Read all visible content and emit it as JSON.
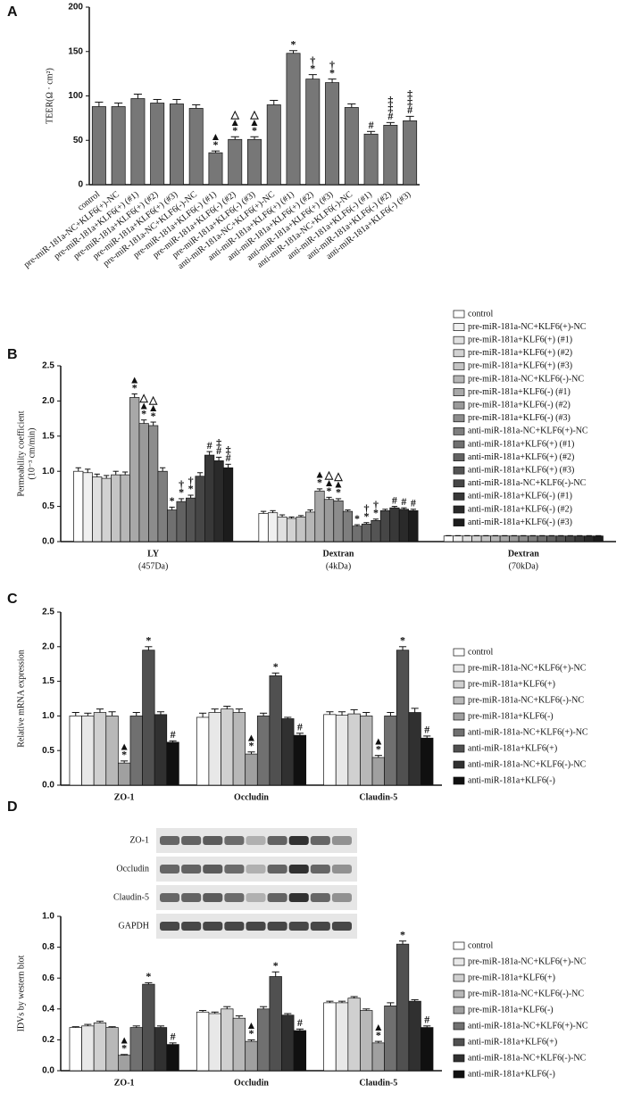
{
  "chart_data": [
    {
      "type": "bar",
      "panel": "A",
      "ylabel": "TEER(Ω · cm²)",
      "categories": [
        "control",
        "pre-miR-181a-NC+KLF6(+)-NC",
        "pre-miR-181a+KLF6(+) (#1)",
        "pre-miR-181a+KLF6(+) (#2)",
        "pre-miR-181a+KLF6(+) (#3)",
        "pre-miR-181a-NC+KLF6(-)-NC",
        "pre-miR-181a+KLF6(-) (#1)",
        "pre-miR-181a+KLF6(-) (#2)",
        "pre-miR-181a+KLF6(-) (#3)",
        "anti-miR-181a-NC+KLF6(+)-NC",
        "anti-miR-181a+KLF6(+) (#1)",
        "anti-miR-181a+KLF6(+) (#2)",
        "anti-miR-181a+KLF6(+) (#3)",
        "anti-miR-181a-NC+KLF6(-)-NC",
        "anti-miR-181a+KLF6(-) (#1)",
        "anti-miR-181a+KLF6(-) (#2)",
        "anti-miR-181a+KLF6(-) (#3)"
      ],
      "values": [
        88,
        88,
        97,
        92,
        91,
        86,
        36,
        51,
        51,
        90,
        148,
        119,
        115,
        87,
        57,
        67,
        72
      ],
      "errors": [
        5,
        4,
        5,
        4,
        5,
        4,
        2,
        3,
        3,
        5,
        3,
        5,
        4,
        4,
        3,
        3,
        5
      ],
      "markers": [
        null,
        null,
        null,
        null,
        null,
        null,
        [
          "▲",
          "*"
        ],
        [
          "△",
          "▲",
          "*"
        ],
        [
          "△",
          "▲",
          "*"
        ],
        null,
        [
          "*"
        ],
        [
          "†",
          "*"
        ],
        [
          "†",
          "*"
        ],
        null,
        [
          "#"
        ],
        [
          "‡",
          "‡",
          "#"
        ],
        [
          "‡",
          "‡",
          "#"
        ]
      ],
      "color": "#777777",
      "ylim": [
        0,
        200
      ],
      "yticks": [
        0,
        50,
        100,
        150,
        200
      ]
    },
    {
      "type": "grouped-bar",
      "panel": "B",
      "ylabel": "Permeability coefficient",
      "ylabel_sub": "(10⁻³ cm/min)",
      "categories": [
        "LY",
        "Dextran",
        "Dextran"
      ],
      "category_sublabels": [
        "(457Da)",
        "(4kDa)",
        "(70kDa)"
      ],
      "ylim": [
        0,
        2.5
      ],
      "yticks": [
        {
          "value": 0,
          "label": "0.0"
        },
        0.5,
        {
          "value": 1,
          "label": "1.0"
        },
        1.5,
        {
          "value": 2,
          "label": "2.0"
        },
        2.5
      ],
      "series": [
        {
          "name": "control",
          "color": "#ffffff",
          "values": [
            1.0,
            0.4,
            0.08
          ],
          "errors": [
            0.05,
            0.03,
            0.005
          ]
        },
        {
          "name": "pre-miR-181a-NC+KLF6(+)-NC",
          "color": "#f0f0f0",
          "values": [
            0.98,
            0.41,
            0.08
          ],
          "errors": [
            0.05,
            0.03,
            0.005
          ]
        },
        {
          "name": "pre-miR-181a+KLF6(+) (#1)",
          "color": "#e0e0e0",
          "values": [
            0.92,
            0.35,
            0.08
          ],
          "errors": [
            0.04,
            0.03,
            0.005
          ]
        },
        {
          "name": "pre-miR-181a+KLF6(+) (#2)",
          "color": "#d2d2d2",
          "values": [
            0.9,
            0.33,
            0.08
          ],
          "errors": [
            0.04,
            0.02,
            0.005
          ]
        },
        {
          "name": "pre-miR-181a+KLF6(+) (#3)",
          "color": "#c4c4c4",
          "values": [
            0.95,
            0.35,
            0.08
          ],
          "errors": [
            0.05,
            0.02,
            0.005
          ]
        },
        {
          "name": "pre-miR-181a-NC+KLF6(-)-NC",
          "color": "#b6b6b6",
          "values": [
            0.95,
            0.42,
            0.08
          ],
          "errors": [
            0.04,
            0.03,
            0.005
          ]
        },
        {
          "name": "pre-miR-181a+KLF6(-) (#1)",
          "color": "#a8a8a8",
          "values": [
            2.05,
            0.72,
            0.08
          ],
          "errors": [
            0.05,
            0.03,
            0.005
          ],
          "markers": [
            [
              "▲",
              "*"
            ],
            [
              "▲",
              "*"
            ],
            null
          ]
        },
        {
          "name": "pre-miR-181a+KLF6(-) (#2)",
          "color": "#9a9a9a",
          "values": [
            1.68,
            0.6,
            0.08
          ],
          "errors": [
            0.05,
            0.03,
            0.005
          ],
          "markers": [
            [
              "△",
              "▲",
              "*"
            ],
            [
              "△",
              "▲",
              "*"
            ],
            null
          ]
        },
        {
          "name": "pre-miR-181a+KLF6(-) (#3)",
          "color": "#8c8c8c",
          "values": [
            1.65,
            0.58,
            0.08
          ],
          "errors": [
            0.05,
            0.03,
            0.005
          ],
          "markers": [
            [
              "△",
              "▲",
              "*"
            ],
            [
              "△",
              "▲",
              "*"
            ],
            null
          ]
        },
        {
          "name": "anti-miR-181a-NC+KLF6(+)-NC",
          "color": "#7e7e7e",
          "values": [
            1.0,
            0.43,
            0.08
          ],
          "errors": [
            0.05,
            0.02,
            0.005
          ]
        },
        {
          "name": "anti-miR-181a+KLF6(+) (#1)",
          "color": "#707070",
          "values": [
            0.45,
            0.22,
            0.08
          ],
          "errors": [
            0.04,
            0.02,
            0.005
          ],
          "markers": [
            [
              "*"
            ],
            [
              "*"
            ],
            null
          ]
        },
        {
          "name": "anti-miR-181a+KLF6(+) (#2)",
          "color": "#626262",
          "values": [
            0.57,
            0.25,
            0.08
          ],
          "errors": [
            0.04,
            0.02,
            0.005
          ],
          "markers": [
            [
              "†",
              "*"
            ],
            [
              "†",
              "*"
            ],
            null
          ]
        },
        {
          "name": "anti-miR-181a+KLF6(+) (#3)",
          "color": "#545454",
          "values": [
            0.62,
            0.3,
            0.08
          ],
          "errors": [
            0.04,
            0.02,
            0.005
          ],
          "markers": [
            [
              "†",
              "*"
            ],
            [
              "†",
              "*"
            ],
            null
          ]
        },
        {
          "name": "anti-miR-181a-NC+KLF6(-)-NC",
          "color": "#464646",
          "values": [
            0.93,
            0.44,
            0.08
          ],
          "errors": [
            0.05,
            0.02,
            0.005
          ]
        },
        {
          "name": "anti-miR-181a+KLF6(-) (#1)",
          "color": "#383838",
          "values": [
            1.23,
            0.48,
            0.08
          ],
          "errors": [
            0.05,
            0.02,
            0.005
          ],
          "markers": [
            [
              "#"
            ],
            [
              "#"
            ],
            null
          ]
        },
        {
          "name": "anti-miR-181a+KLF6(-) (#2)",
          "color": "#2a2a2a",
          "values": [
            1.15,
            0.46,
            0.08
          ],
          "errors": [
            0.05,
            0.02,
            0.005
          ],
          "markers": [
            [
              "‡",
              "#"
            ],
            [
              "#"
            ],
            null
          ]
        },
        {
          "name": "anti-miR-181a+KLF6(-) (#3)",
          "color": "#1c1c1c",
          "values": [
            1.05,
            0.44,
            0.08
          ],
          "errors": [
            0.05,
            0.02,
            0.005
          ],
          "markers": [
            [
              "‡",
              "#"
            ],
            [
              "#"
            ],
            null
          ]
        }
      ]
    },
    {
      "type": "grouped-bar",
      "panel": "C",
      "ylabel": "Relative mRNA expression",
      "categories": [
        "ZO-1",
        "Occludin",
        "Claudin-5"
      ],
      "ylim": [
        0,
        2.5
      ],
      "yticks": [
        {
          "value": 0,
          "label": "0.0"
        },
        0.5,
        {
          "value": 1,
          "label": "1.0"
        },
        1.5,
        {
          "value": 2,
          "label": "2.0"
        },
        2.5
      ],
      "series": [
        {
          "name": "control",
          "color": "#ffffff",
          "values": [
            1.0,
            0.98,
            1.02
          ],
          "errors": [
            0.05,
            0.06,
            0.04
          ]
        },
        {
          "name": "pre-miR-181a-NC+KLF6(+)-NC",
          "color": "#e8e8e8",
          "values": [
            1.0,
            1.05,
            1.01
          ],
          "errors": [
            0.04,
            0.05,
            0.05
          ]
        },
        {
          "name": "pre-miR-181a+KLF6(+)",
          "color": "#d0d0d0",
          "values": [
            1.05,
            1.1,
            1.03
          ],
          "errors": [
            0.05,
            0.04,
            0.06
          ]
        },
        {
          "name": "pre-miR-181a-NC+KLF6(-)-NC",
          "color": "#b8b8b8",
          "values": [
            1.0,
            1.05,
            1.0
          ],
          "errors": [
            0.06,
            0.05,
            0.05
          ]
        },
        {
          "name": "pre-miR-181a+KLF6(-)",
          "color": "#a0a0a0",
          "values": [
            0.32,
            0.45,
            0.4
          ],
          "errors": [
            0.03,
            0.03,
            0.03
          ],
          "markers": [
            [
              "▲",
              "*"
            ],
            [
              "▲",
              "*"
            ],
            [
              "▲",
              "*"
            ]
          ]
        },
        {
          "name": "anti-miR-181a-NC+KLF6(+)-NC",
          "color": "#707070",
          "values": [
            1.0,
            1.0,
            1.0
          ],
          "errors": [
            0.05,
            0.04,
            0.05
          ]
        },
        {
          "name": "anti-miR-181a+KLF6(+)",
          "color": "#505050",
          "values": [
            1.95,
            1.58,
            1.95
          ],
          "errors": [
            0.05,
            0.04,
            0.05
          ],
          "markers": [
            [
              "*"
            ],
            [
              "*"
            ],
            [
              "*"
            ]
          ]
        },
        {
          "name": "anti-miR-181a-NC+KLF6(-)-NC",
          "color": "#303030",
          "values": [
            1.02,
            0.96,
            1.05
          ],
          "errors": [
            0.04,
            0.02,
            0.06
          ]
        },
        {
          "name": "anti-miR-181a+KLF6(-)",
          "color": "#101010",
          "values": [
            0.62,
            0.72,
            0.68
          ],
          "errors": [
            0.02,
            0.03,
            0.03
          ],
          "markers": [
            [
              "#"
            ],
            [
              "#"
            ],
            [
              "#"
            ]
          ]
        }
      ]
    },
    {
      "type": "grouped-bar",
      "panel": "D",
      "ylabel": "IDVs by western blot",
      "blot_labels": [
        "ZO-1",
        "Occludin",
        "Claudin-5",
        "GAPDH"
      ],
      "categories": [
        "ZO-1",
        "Occludin",
        "Claudin-5"
      ],
      "ylim": [
        0,
        1.0
      ],
      "yticks": [
        {
          "value": 0,
          "label": "0.0"
        },
        0.2,
        0.4,
        0.6,
        0.8,
        {
          "value": 1,
          "label": "1.0"
        }
      ],
      "series": [
        {
          "name": "control",
          "color": "#ffffff",
          "values": [
            0.28,
            0.38,
            0.44
          ],
          "errors": [
            0.005,
            0.01,
            0.01
          ]
        },
        {
          "name": "pre-miR-181a-NC+KLF6(+)-NC",
          "color": "#e8e8e8",
          "values": [
            0.29,
            0.37,
            0.44
          ],
          "errors": [
            0.01,
            0.01,
            0.01
          ]
        },
        {
          "name": "pre-miR-181a+KLF6(+)",
          "color": "#d0d0d0",
          "values": [
            0.31,
            0.4,
            0.47
          ],
          "errors": [
            0.01,
            0.015,
            0.01
          ]
        },
        {
          "name": "pre-miR-181a-NC+KLF6(-)-NC",
          "color": "#b8b8b8",
          "values": [
            0.28,
            0.34,
            0.39
          ],
          "errors": [
            0.005,
            0.015,
            0.01
          ]
        },
        {
          "name": "pre-miR-181a+KLF6(-)",
          "color": "#a0a0a0",
          "values": [
            0.1,
            0.19,
            0.18
          ],
          "errors": [
            0.005,
            0.01,
            0.01
          ],
          "markers": [
            [
              "▲",
              "*"
            ],
            [
              "▲",
              "*"
            ],
            [
              "▲",
              "*"
            ]
          ]
        },
        {
          "name": "anti-miR-181a-NC+KLF6(+)-NC",
          "color": "#707070",
          "values": [
            0.28,
            0.4,
            0.42
          ],
          "errors": [
            0.01,
            0.015,
            0.02
          ]
        },
        {
          "name": "anti-miR-181a+KLF6(+)",
          "color": "#505050",
          "values": [
            0.56,
            0.61,
            0.82
          ],
          "errors": [
            0.01,
            0.03,
            0.02
          ],
          "markers": [
            [
              "*"
            ],
            [
              "*"
            ],
            [
              "*"
            ]
          ]
        },
        {
          "name": "anti-miR-181a-NC+KLF6(-)-NC",
          "color": "#303030",
          "values": [
            0.28,
            0.36,
            0.45
          ],
          "errors": [
            0.01,
            0.01,
            0.01
          ]
        },
        {
          "name": "anti-miR-181a+KLF6(-)",
          "color": "#101010",
          "values": [
            0.17,
            0.26,
            0.28
          ],
          "errors": [
            0.01,
            0.01,
            0.01
          ],
          "markers": [
            [
              "#"
            ],
            [
              "#"
            ],
            [
              "#"
            ]
          ]
        }
      ]
    }
  ]
}
